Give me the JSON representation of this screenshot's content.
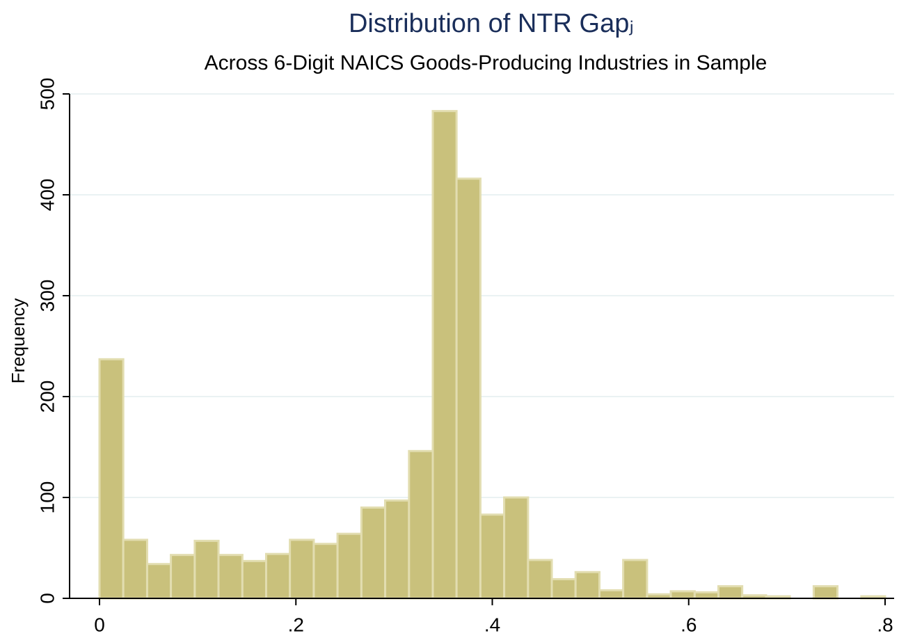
{
  "chart_data": {
    "type": "histogram",
    "title": "Distribution of NTR Gapⱼ",
    "subtitle": "Across 6-Digit NAICS Goods-Producing Industries in Sample",
    "y_label": "Frequency",
    "bins": [
      0,
      0.0242,
      0.0485,
      0.0727,
      0.097,
      0.1212,
      0.1455,
      0.1697,
      0.1939,
      0.2182,
      0.2424,
      0.2667,
      0.2909,
      0.3152,
      0.3394,
      0.3636,
      0.3879,
      0.4121,
      0.4364,
      0.4606,
      0.4848,
      0.5091,
      0.5333,
      0.5576,
      0.5818,
      0.6061,
      0.6303,
      0.6545,
      0.6788,
      0.703,
      0.7273,
      0.7515,
      0.7758,
      0.8
    ],
    "values": [
      237,
      58,
      34,
      43,
      57,
      43,
      37,
      44,
      58,
      54,
      64,
      90,
      97,
      146,
      483,
      416,
      83,
      100,
      38,
      19,
      26,
      8,
      38,
      4,
      7,
      6,
      12,
      3,
      2,
      0,
      12,
      0,
      2
    ],
    "color": "#c9c17c",
    "xlim": [
      0,
      0.8
    ],
    "xticks": [
      0,
      {
        "value": 0.2,
        "label": ".2"
      },
      {
        "value": 0.4,
        "label": ".4"
      },
      {
        "value": 0.6,
        "label": ".6"
      },
      {
        "value": 0.8,
        "label": ".8"
      }
    ],
    "ylim": [
      0,
      500
    ],
    "yticks": [
      0,
      100,
      200,
      300,
      400,
      500
    ],
    "grid": true
  }
}
